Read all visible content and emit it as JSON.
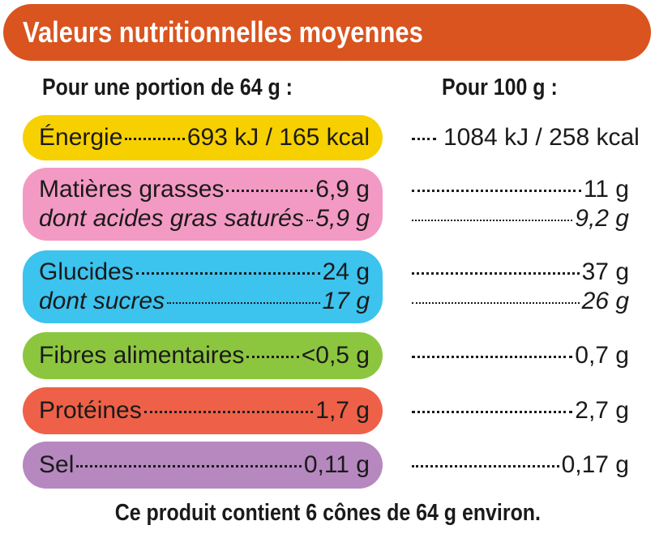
{
  "title": "Valeurs nutritionnelles moyennes",
  "header_portion": "Pour une portion de 64 g :",
  "header_100g": "Pour 100 g :",
  "colors": {
    "banner": "#d9541f",
    "energie": "#f7d000",
    "matieres_grasses": "#f39ac4",
    "glucides": "#3cc3ee",
    "fibres": "#8cc63f",
    "proteines": "#ee6148",
    "sel": "#b688bf"
  },
  "rows": {
    "energie": {
      "label": "Énergie",
      "portion": "693 kJ / 165 kcal",
      "per100": "1084 kJ / 258 kcal"
    },
    "matieres_grasses": {
      "label": "Matières grasses",
      "portion": "6,9 g",
      "per100": "11 g",
      "sub_label": "dont acides gras saturés",
      "sub_portion": "5,9 g",
      "sub_per100": "9,2 g"
    },
    "glucides": {
      "label": "Glucides",
      "portion": "24 g",
      "per100": "37 g",
      "sub_label": "dont sucres",
      "sub_portion": "17 g",
      "sub_per100": "26 g"
    },
    "fibres": {
      "label": "Fibres alimentaires",
      "portion": "<0,5 g",
      "per100": "0,7 g"
    },
    "proteines": {
      "label": "Protéines",
      "portion": "1,7 g",
      "per100": "2,7 g"
    },
    "sel": {
      "label": "Sel",
      "portion": "0,11 g",
      "per100": "0,17 g"
    }
  },
  "footer": "Ce produit contient 6 cônes de 64 g environ."
}
